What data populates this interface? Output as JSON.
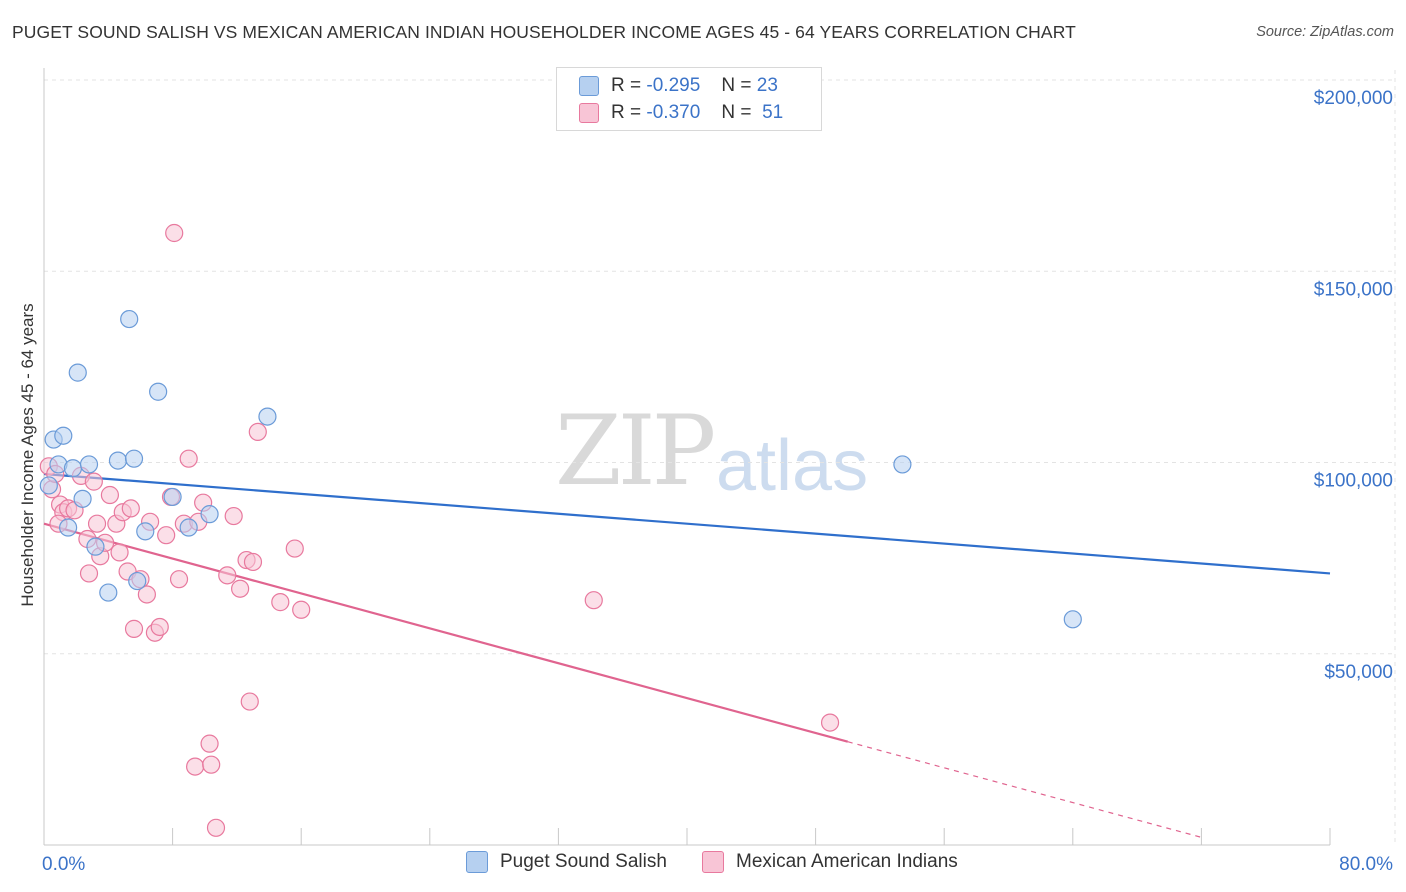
{
  "title": "PUGET SOUND SALISH VS MEXICAN AMERICAN INDIAN HOUSEHOLDER INCOME AGES 45 - 64 YEARS CORRELATION CHART",
  "source": "Source: ZipAtlas.com",
  "watermark": {
    "zip": "ZIP",
    "atlas": "atlas"
  },
  "legend": {
    "r_label": "R =",
    "n_label": "N =",
    "series": [
      {
        "r": "-0.295",
        "n": "23",
        "color": "#b6d0f0"
      },
      {
        "r": "-0.370",
        "n": "51",
        "color": "#f8c5d6"
      }
    ]
  },
  "chart_data": {
    "type": "scatter",
    "title": "PUGET SOUND SALISH VS MEXICAN AMERICAN INDIAN HOUSEHOLDER INCOME AGES 45 - 64 YEARS CORRELATION CHART",
    "xlabel": "",
    "ylabel": "Householder Income Ages 45 - 64 years",
    "xlim": [
      0,
      80
    ],
    "ylim": [
      0,
      205000
    ],
    "x_tick_labels": [
      "0.0%",
      "80.0%"
    ],
    "y_ticks": [
      50000,
      100000,
      150000,
      200000
    ],
    "y_tick_labels": [
      "$50,000",
      "$100,000",
      "$150,000",
      "$200,000"
    ],
    "grid": true,
    "series": [
      {
        "name": "Puget Sound Salish",
        "color": "#6b9bd8",
        "fill": "#b6d0f0",
        "trend": {
          "x0": 0,
          "y0": 97000,
          "x1": 80,
          "y1": 71000,
          "dashed_from": null
        },
        "points": [
          [
            0.3,
            94000
          ],
          [
            0.6,
            106000
          ],
          [
            0.9,
            99500
          ],
          [
            1.2,
            107000
          ],
          [
            1.5,
            83000
          ],
          [
            1.8,
            98500
          ],
          [
            2.4,
            90500
          ],
          [
            2.8,
            99500
          ],
          [
            3.2,
            78000
          ],
          [
            4.0,
            66000
          ],
          [
            4.6,
            100500
          ],
          [
            5.3,
            137500
          ],
          [
            5.6,
            101000
          ],
          [
            5.8,
            69000
          ],
          [
            6.3,
            82000
          ],
          [
            7.1,
            118500
          ],
          [
            8.0,
            91000
          ],
          [
            9.0,
            83000
          ],
          [
            10.3,
            86500
          ],
          [
            13.9,
            112000
          ],
          [
            53.4,
            99500
          ],
          [
            64.0,
            59000
          ],
          [
            2.1,
            123500
          ]
        ]
      },
      {
        "name": "Mexican American Indians",
        "color": "#e8799e",
        "fill": "#f8c5d6",
        "trend": {
          "x0": 0,
          "y0": 84000,
          "x1": 50,
          "y1": 27000,
          "dashed_from": 50,
          "x_end": 72,
          "y_end": 2000
        },
        "points": [
          [
            0.3,
            99000
          ],
          [
            0.5,
            93000
          ],
          [
            0.7,
            97000
          ],
          [
            1.0,
            89000
          ],
          [
            1.2,
            87000
          ],
          [
            1.5,
            88000
          ],
          [
            1.9,
            87500
          ],
          [
            2.3,
            96500
          ],
          [
            2.7,
            80000
          ],
          [
            2.8,
            71000
          ],
          [
            3.1,
            95000
          ],
          [
            3.3,
            84000
          ],
          [
            3.5,
            75500
          ],
          [
            3.8,
            79000
          ],
          [
            4.1,
            91500
          ],
          [
            4.5,
            84000
          ],
          [
            4.7,
            76500
          ],
          [
            4.9,
            87000
          ],
          [
            5.2,
            71500
          ],
          [
            5.4,
            88000
          ],
          [
            5.6,
            56500
          ],
          [
            6.0,
            69500
          ],
          [
            6.4,
            65500
          ],
          [
            6.6,
            84500
          ],
          [
            6.9,
            55500
          ],
          [
            7.2,
            57000
          ],
          [
            7.6,
            81000
          ],
          [
            7.9,
            91000
          ],
          [
            8.1,
            160000
          ],
          [
            8.4,
            69500
          ],
          [
            8.7,
            84000
          ],
          [
            9.0,
            101000
          ],
          [
            9.4,
            20500
          ],
          [
            9.6,
            84500
          ],
          [
            9.9,
            89500
          ],
          [
            10.3,
            26500
          ],
          [
            10.4,
            21000
          ],
          [
            10.7,
            4500
          ],
          [
            11.4,
            70500
          ],
          [
            11.8,
            86000
          ],
          [
            12.2,
            67000
          ],
          [
            12.6,
            74500
          ],
          [
            12.8,
            37500
          ],
          [
            13.3,
            108000
          ],
          [
            14.7,
            63500
          ],
          [
            15.6,
            77500
          ],
          [
            16.0,
            61500
          ],
          [
            34.2,
            64000
          ],
          [
            48.9,
            32000
          ],
          [
            0.9,
            84000
          ],
          [
            13.0,
            74000
          ]
        ]
      }
    ]
  },
  "bottom_legend": {
    "items": [
      {
        "label": "Puget Sound Salish",
        "color": "#b6d0f0"
      },
      {
        "label": "Mexican American Indians",
        "color": "#f8c5d6"
      }
    ]
  }
}
